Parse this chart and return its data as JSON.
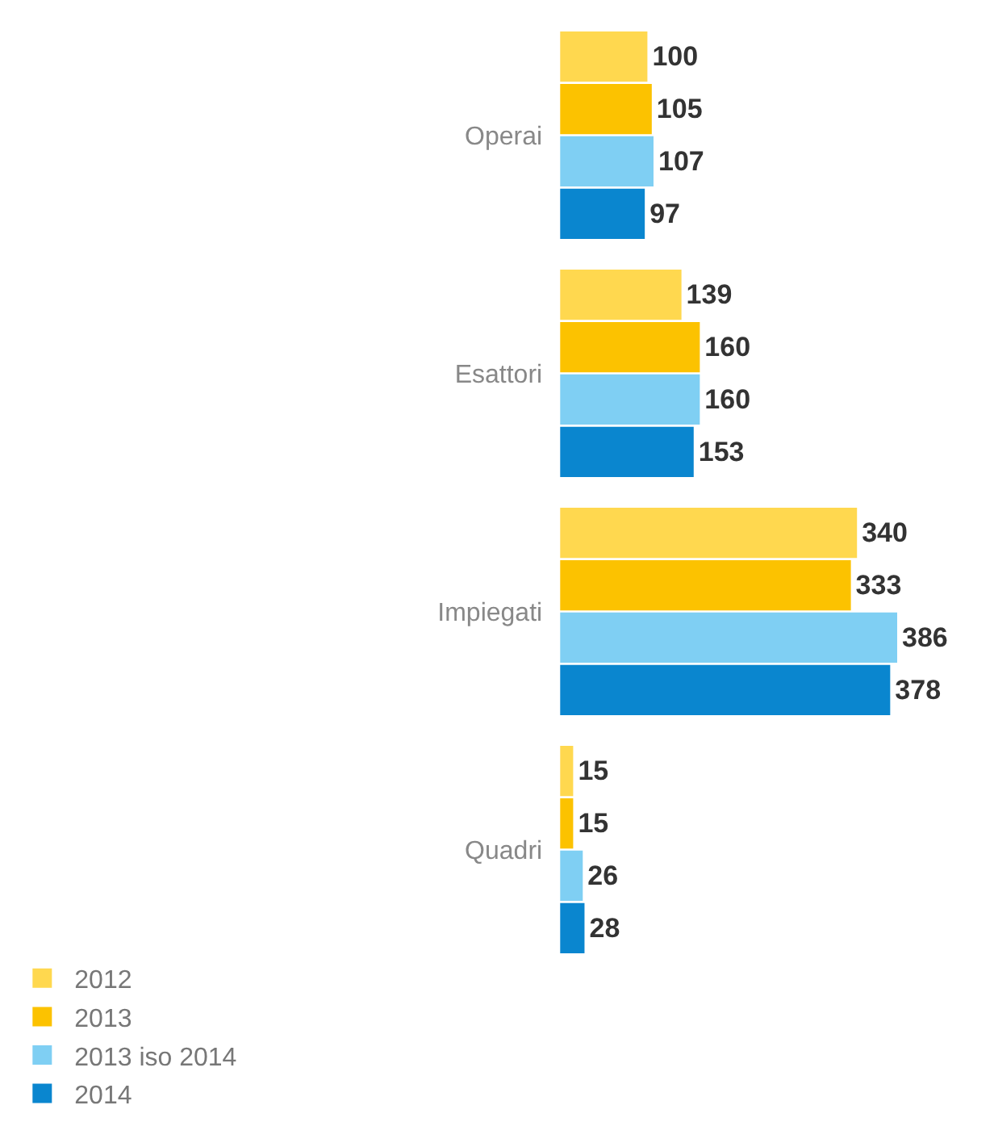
{
  "chart_data": {
    "type": "bar",
    "orientation": "horizontal",
    "categories": [
      "Operai",
      "Esattori",
      "Impiegati",
      "Quadri"
    ],
    "series": [
      {
        "name": "2012",
        "color": "#ffd84f",
        "values": [
          100,
          139,
          340,
          15
        ]
      },
      {
        "name": "2013",
        "color": "#fcc200",
        "values": [
          105,
          160,
          333,
          15
        ]
      },
      {
        "name": "2013 iso 2014",
        "color": "#7fcff3",
        "values": [
          107,
          160,
          386,
          26
        ]
      },
      {
        "name": "2014",
        "color": "#0a86cf",
        "values": [
          97,
          153,
          378,
          28
        ]
      }
    ],
    "data_labels": true,
    "legend": "bottom"
  }
}
